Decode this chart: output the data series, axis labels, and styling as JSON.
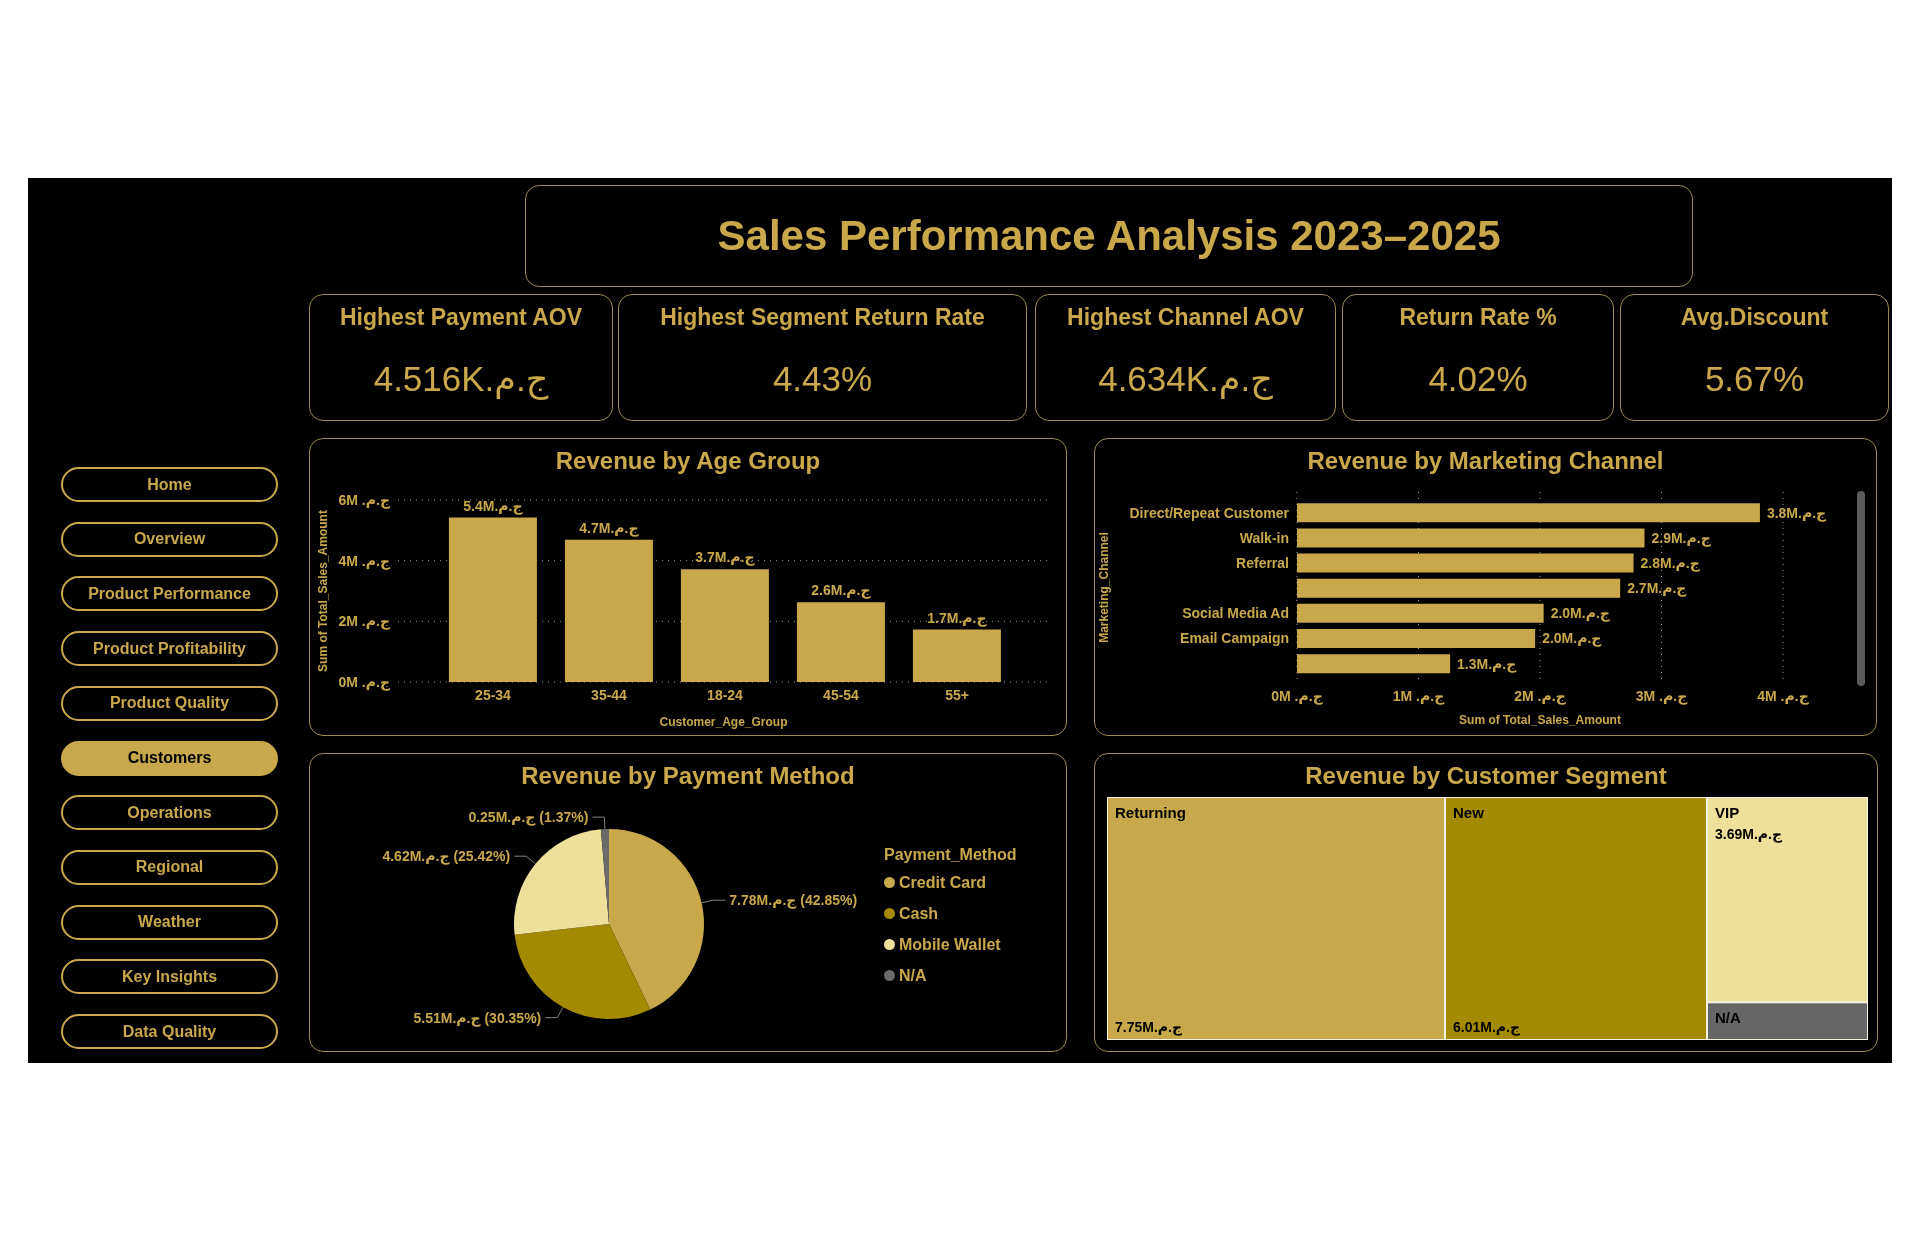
{
  "chart_data": [
    {
      "type": "other",
      "categories": [
        "Home",
        "Overview",
        "Product Performance",
        "Product Profitability",
        "Product Quality",
        "Customers",
        "Operations",
        "Regional",
        "Weather",
        "Key Insights",
        "Data Quality"
      ],
      "colors": [
        "#000000",
        "#000000",
        "#000000",
        "#000000",
        "#000000",
        "#c9a84c",
        "#000000",
        "#000000",
        "#000000",
        "#000000",
        "#000000"
      ]
    },
    {
      "type": "other",
      "title": "Sales Performance Analysis 2023–2025"
    },
    {
      "type": "other",
      "title": "Highest Payment AOV",
      "annotations": [
        "4.516K.ج.م"
      ]
    },
    {
      "type": "other",
      "title": "Highest Segment Return Rate",
      "annotations": [
        "4.43%"
      ]
    },
    {
      "type": "other",
      "title": "Highest Channel AOV",
      "annotations": [
        "4.634K.ج.م"
      ]
    },
    {
      "type": "other",
      "title": "Return Rate %",
      "annotations": [
        "4.02%"
      ]
    },
    {
      "type": "other",
      "title": "Avg.Discount",
      "annotations": [
        "5.67%"
      ]
    },
    {
      "type": "bar",
      "title": "Revenue by Age Group",
      "xlabel": "Customer_Age_Group",
      "ylabel": "Sum of Total_Sales_Amount",
      "categories": [
        "25-34",
        "35-44",
        "18-24",
        "45-54",
        "55+"
      ],
      "values": [
        5.42,
        4.69,
        3.72,
        2.63,
        1.73
      ],
      "color": "#c9a84c",
      "value_labels": [
        "5.4M.ج.م",
        "4.7M.ج.م",
        "3.7M.ج.م",
        "2.6M.ج.م",
        "1.7M.ج.م"
      ],
      "ylim": [
        0,
        6
      ],
      "yticks": [
        {
          "value": 0,
          "label": "0M .ج.م"
        },
        {
          "value": 2,
          "label": "2M .ج.م"
        },
        {
          "value": 4,
          "label": "4M .ج.م"
        },
        {
          "value": 6,
          "label": "6M .ج.م"
        }
      ],
      "grid": "y"
    },
    {
      "type": "bar",
      "orientation": "horizontal",
      "title": "Revenue by Marketing Channel",
      "xlabel": "Sum of Total_Sales_Amount",
      "ylabel": "Marketing_Channel",
      "categories": [
        "Direct/Repeat Customer",
        "Walk-in",
        "Referral",
        null,
        "Social Media Ad",
        "Email Campaign",
        null
      ],
      "values": [
        3.81,
        2.86,
        2.77,
        2.66,
        2.03,
        1.96,
        1.26
      ],
      "color": "#c9a84c",
      "value_labels": [
        "3.8M.ج.م",
        "2.9M.ج.م",
        "2.8M.ج.م",
        "2.7M.ج.م",
        "2.0M.ج.م",
        "2.0M.ج.م",
        "1.3M.ج.م"
      ],
      "xlim": [
        0,
        4
      ],
      "xticks": [
        {
          "value": 0,
          "label": "0M .ج.م"
        },
        {
          "value": 1,
          "label": "1M .ج.م"
        },
        {
          "value": 2,
          "label": "2M .ج.م"
        },
        {
          "value": 3,
          "label": "3M .ج.م"
        },
        {
          "value": 4,
          "label": "4M .ج.م"
        }
      ],
      "grid": "x"
    },
    {
      "type": "pie",
      "title": "Revenue by Payment Method",
      "legend_title": "Payment_Method",
      "categories": [
        "Credit Card",
        "Cash",
        "Mobile Wallet",
        "N/A"
      ],
      "values": [
        42.85,
        30.35,
        25.42,
        1.37
      ],
      "colors": [
        "#c9a84c",
        "#a38a00",
        "#ede09b",
        "#6b6b6b"
      ],
      "value_labels": [
        "7.78M.ج.م (42.85%)",
        "5.51M.ج.م (30.35%)",
        "4.62M.ج.م (25.42%)",
        "0.25M.ج.م (1.37%)"
      ],
      "legend": "right"
    },
    {
      "type": "other",
      "title": "Revenue by Customer Segment",
      "categories": [
        "Returning",
        "New",
        "VIP",
        "N/A"
      ],
      "values": [
        7.75,
        6.01,
        3.69,
        null
      ],
      "colors": [
        "#c8a84b",
        "#a38a00",
        "#ede09b",
        "#666666"
      ],
      "value_labels": [
        "7.75M.ج.م",
        "6.01M.ج.م",
        "3.69M.ج.م",
        null
      ]
    }
  ]
}
